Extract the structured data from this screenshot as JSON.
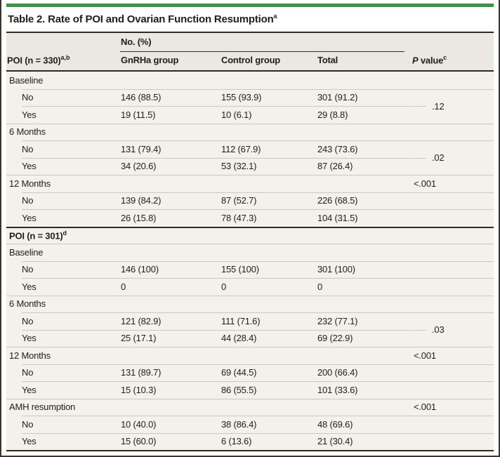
{
  "title": {
    "text": "Table 2. Rate of POI and Ovarian Function Resumption",
    "sup": "a"
  },
  "header": {
    "span_label": "No. (%)",
    "row_label": "POI (n = 330)",
    "row_label_sup": "a,b",
    "col_gnrha": "GnRHa group",
    "col_control": "Control group",
    "col_total": "Total",
    "p_italic": "P",
    "p_rest": " value",
    "p_sup": "c"
  },
  "sections": [
    {
      "name": "Baseline",
      "p": ".12",
      "rows": [
        {
          "label": "No",
          "v": [
            "146 (88.5)",
            "155 (93.9)",
            "301 (91.2)"
          ]
        },
        {
          "label": "Yes",
          "v": [
            "19 (11.5)",
            "10 (6.1)",
            "29 (8.8)"
          ]
        }
      ]
    },
    {
      "name": "6 Months",
      "p": ".02",
      "rows": [
        {
          "label": "No",
          "v": [
            "131 (79.4)",
            "112 (67.9)",
            "243 (73.6)"
          ]
        },
        {
          "label": "Yes",
          "v": [
            "34 (20.6)",
            "53 (32.1)",
            "87 (26.4)"
          ]
        }
      ]
    },
    {
      "name": "12 Months",
      "p": "<.001",
      "rows": [
        {
          "label": "No",
          "v": [
            "139 (84.2)",
            "87 (52.7)",
            "226 (68.5)"
          ]
        },
        {
          "label": "Yes",
          "v": [
            "26 (15.8)",
            "78 (47.3)",
            "104 (31.5)"
          ]
        }
      ]
    },
    {
      "name": "POI (n = 301)",
      "sup": "d"
    },
    {
      "name": "Baseline",
      "rows": [
        {
          "label": "No",
          "v": [
            "146 (100)",
            "155 (100)",
            "301 (100)"
          ]
        },
        {
          "label": "Yes",
          "v": [
            "0",
            "0",
            "0"
          ]
        }
      ]
    },
    {
      "name": "6 Months",
      "p": ".03",
      "rows": [
        {
          "label": "No",
          "v": [
            "121 (82.9)",
            "111 (71.6)",
            "232 (77.1)"
          ]
        },
        {
          "label": "Yes",
          "v": [
            "25 (17.1)",
            "44 (28.4)",
            "69 (22.9)"
          ]
        }
      ]
    },
    {
      "name": "12 Months",
      "p": "<.001",
      "rows": [
        {
          "label": "No",
          "v": [
            "131 (89.7)",
            "69 (44.5)",
            "200 (66.4)"
          ]
        },
        {
          "label": "Yes",
          "v": [
            "15 (10.3)",
            "86 (55.5)",
            "101 (33.6)"
          ]
        }
      ]
    },
    {
      "name": "AMH resumption",
      "p": "<.001",
      "rows": [
        {
          "label": "No",
          "v": [
            "10 (40.0)",
            "38 (86.4)",
            "48 (69.6)"
          ]
        },
        {
          "label": "Yes",
          "v": [
            "15 (60.0)",
            "6 (13.6)",
            "21 (30.4)"
          ]
        }
      ]
    }
  ],
  "colors": {
    "accent_bar": "#3f9048",
    "table_body_bg": "#f4f1ea",
    "table_header_bg": "#ebe8e2",
    "rule_dark": "#2d2a25",
    "rule_light": "#cbc8c1"
  }
}
